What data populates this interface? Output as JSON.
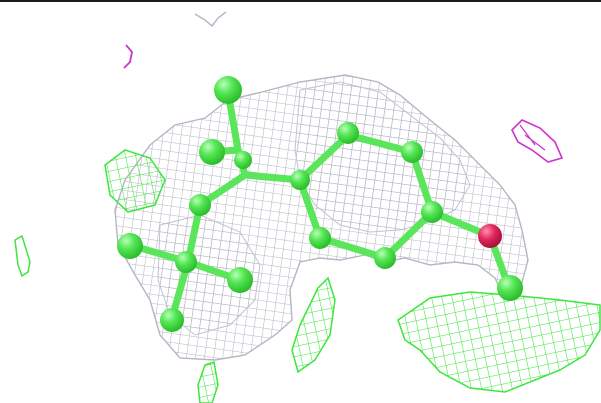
{
  "viewer": {
    "background": "#ffffff",
    "colors": {
      "density_map": "#b8b8c8",
      "difference_map": "#33e633",
      "negative_map": "#cc33cc",
      "carbon": "#55e555",
      "oxygen": "#e0285a",
      "bond": "#5ae65a"
    }
  }
}
